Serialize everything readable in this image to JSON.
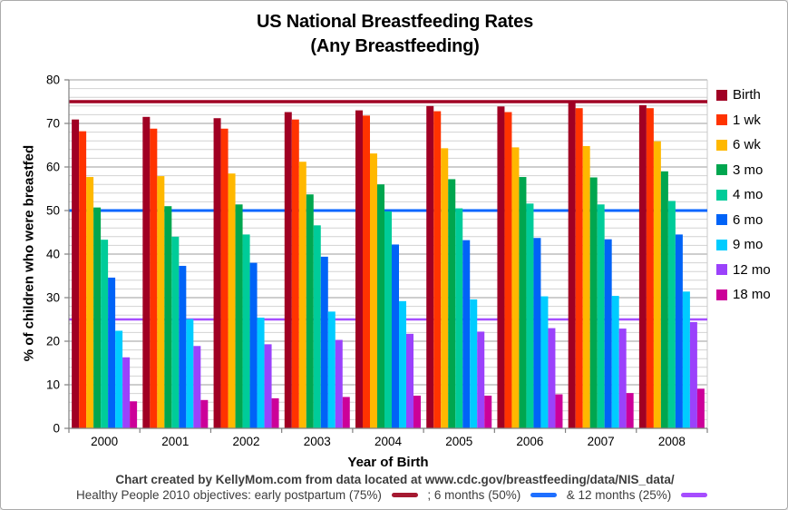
{
  "chart_data": {
    "type": "bar",
    "title": "US National Breastfeeding Rates",
    "subtitle": "(Any Breastfeeding)",
    "xlabel": "Year of Birth",
    "ylabel": "% of children who were breastfed",
    "ylim": [
      0,
      80
    ],
    "yticks": [
      0,
      10,
      20,
      30,
      40,
      50,
      60,
      70,
      80
    ],
    "minor_grid_step": 2,
    "grid": true,
    "legend_position": "right",
    "categories": [
      "2000",
      "2001",
      "2002",
      "2003",
      "2004",
      "2005",
      "2006",
      "2007",
      "2008"
    ],
    "series": [
      {
        "name": "Birth",
        "color": "#A00023",
        "values": [
          70.9,
          71.5,
          71.2,
          72.6,
          73.0,
          74.0,
          73.9,
          75.0,
          74.2
        ]
      },
      {
        "name": "1 wk",
        "color": "#FF3300",
        "values": [
          68.2,
          68.8,
          68.8,
          70.9,
          71.8,
          72.8,
          72.6,
          73.5,
          73.5
        ]
      },
      {
        "name": "6 wk",
        "color": "#FFB800",
        "values": [
          57.7,
          57.9,
          58.5,
          61.2,
          63.1,
          64.3,
          64.5,
          64.8,
          65.9
        ]
      },
      {
        "name": "3 mo",
        "color": "#00A64F",
        "values": [
          50.7,
          51.0,
          51.4,
          53.7,
          56.0,
          57.2,
          57.7,
          57.6,
          59.0
        ]
      },
      {
        "name": "4 mo",
        "color": "#00CC99",
        "values": [
          43.3,
          44.0,
          44.5,
          46.6,
          49.8,
          50.5,
          51.6,
          51.4,
          52.2
        ]
      },
      {
        "name": "6 mo",
        "color": "#0063F7",
        "values": [
          34.6,
          37.3,
          38.0,
          39.4,
          42.2,
          43.2,
          43.7,
          43.4,
          44.5
        ]
      },
      {
        "name": "9 mo",
        "color": "#00CCFF",
        "values": [
          22.4,
          25.1,
          25.4,
          26.8,
          29.2,
          29.6,
          30.3,
          30.4,
          31.4
        ]
      },
      {
        "name": "12 mo",
        "color": "#9B42FB",
        "values": [
          16.3,
          18.9,
          19.3,
          20.3,
          21.7,
          22.2,
          23.0,
          22.9,
          24.4
        ]
      },
      {
        "name": "18 mo",
        "color": "#CC0099",
        "values": [
          6.2,
          6.5,
          6.9,
          7.2,
          7.5,
          7.5,
          7.8,
          8.1,
          9.1
        ]
      }
    ],
    "reference_lines": [
      {
        "label": "early postpartum objective",
        "value": 75,
        "color": "#A00023",
        "width": 3.5
      },
      {
        "label": "6 months objective",
        "value": 50,
        "color": "#0A66FF",
        "width": 3
      },
      {
        "label": "12 months objective",
        "value": 25,
        "color": "#A64DFF",
        "width": 2.5
      }
    ],
    "style": {
      "grid_minor_color": "#D2D2D2",
      "grid_major_color": "#9C9C9C",
      "axis_color": "#808080",
      "plot_right_border_color": "#C9C9C9",
      "text_color": "#000000"
    }
  },
  "footer": {
    "caption1": "Chart created by KellyMom.com from data located at www.cdc.gov/breastfeeding/data/NIS_data/",
    "caption2_parts": [
      {
        "text": "Healthy People 2010 objectives: early postpartum (75%)",
        "dash_color": "#A51931"
      },
      {
        "text": ";  6 months (50%)",
        "dash_color": "#1E6FFF"
      },
      {
        "text": "& 12 months (25%)",
        "dash_color": "#A64DFF"
      }
    ]
  }
}
